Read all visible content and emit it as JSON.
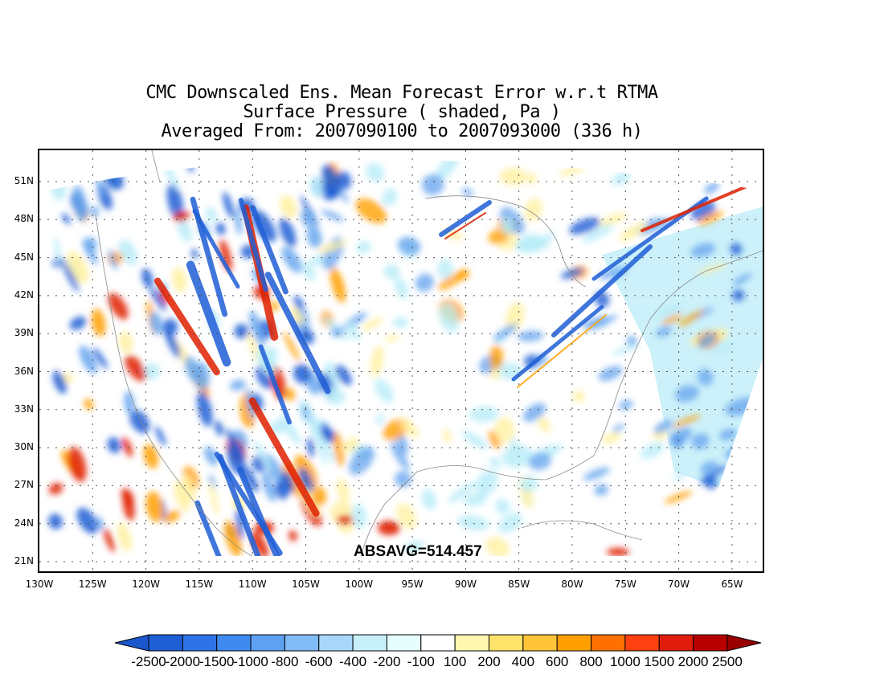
{
  "title": {
    "line1": "CMC Downscaled Ens. Mean Forecast Error w.r.t RTMA",
    "line2": "Surface Pressure ( shaded, Pa )",
    "line3": "Averaged From: 2007090100 to 2007093000 (336 h)"
  },
  "annotation": "ABSAVG=514.457",
  "map": {
    "lat_labels": [
      "51N",
      "48N",
      "45N",
      "42N",
      "39N",
      "36N",
      "33N",
      "30N",
      "27N",
      "24N",
      "21N"
    ],
    "lon_labels": [
      "130W",
      "125W",
      "120W",
      "115W",
      "110W",
      "105W",
      "100W",
      "95W",
      "90W",
      "85W",
      "80W",
      "75W",
      "70W",
      "65W"
    ],
    "grid": "dotted",
    "field_colors": {
      "strong_negative": "#1f5fd6",
      "negative": "#6aa8ef",
      "weak_negative": "#b8ecf8",
      "neutral": "#ffffff",
      "weak_positive": "#fff0a0",
      "positive": "#ffa000",
      "strong_positive": "#e02000"
    }
  },
  "colorbar": {
    "labels": [
      "-2500",
      "-2000",
      "-1500",
      "-1000",
      "-800",
      "-600",
      "-400",
      "-200",
      "-100",
      "100",
      "200",
      "400",
      "600",
      "800",
      "1000",
      "1500",
      "2000",
      "2500"
    ],
    "colors": [
      "#1f5fd6",
      "#2f74e6",
      "#3f8aee",
      "#5ea0f2",
      "#82bcf6",
      "#a8d6fa",
      "#c8f0fa",
      "#e6fefe",
      "#ffffff",
      "#fff6b0",
      "#ffe26a",
      "#ffc43a",
      "#ffa000",
      "#ff7000",
      "#ff4010",
      "#e01c0c",
      "#b80000"
    ],
    "left_arrow_color": "#1a56cc",
    "right_arrow_color": "#9a0000"
  }
}
